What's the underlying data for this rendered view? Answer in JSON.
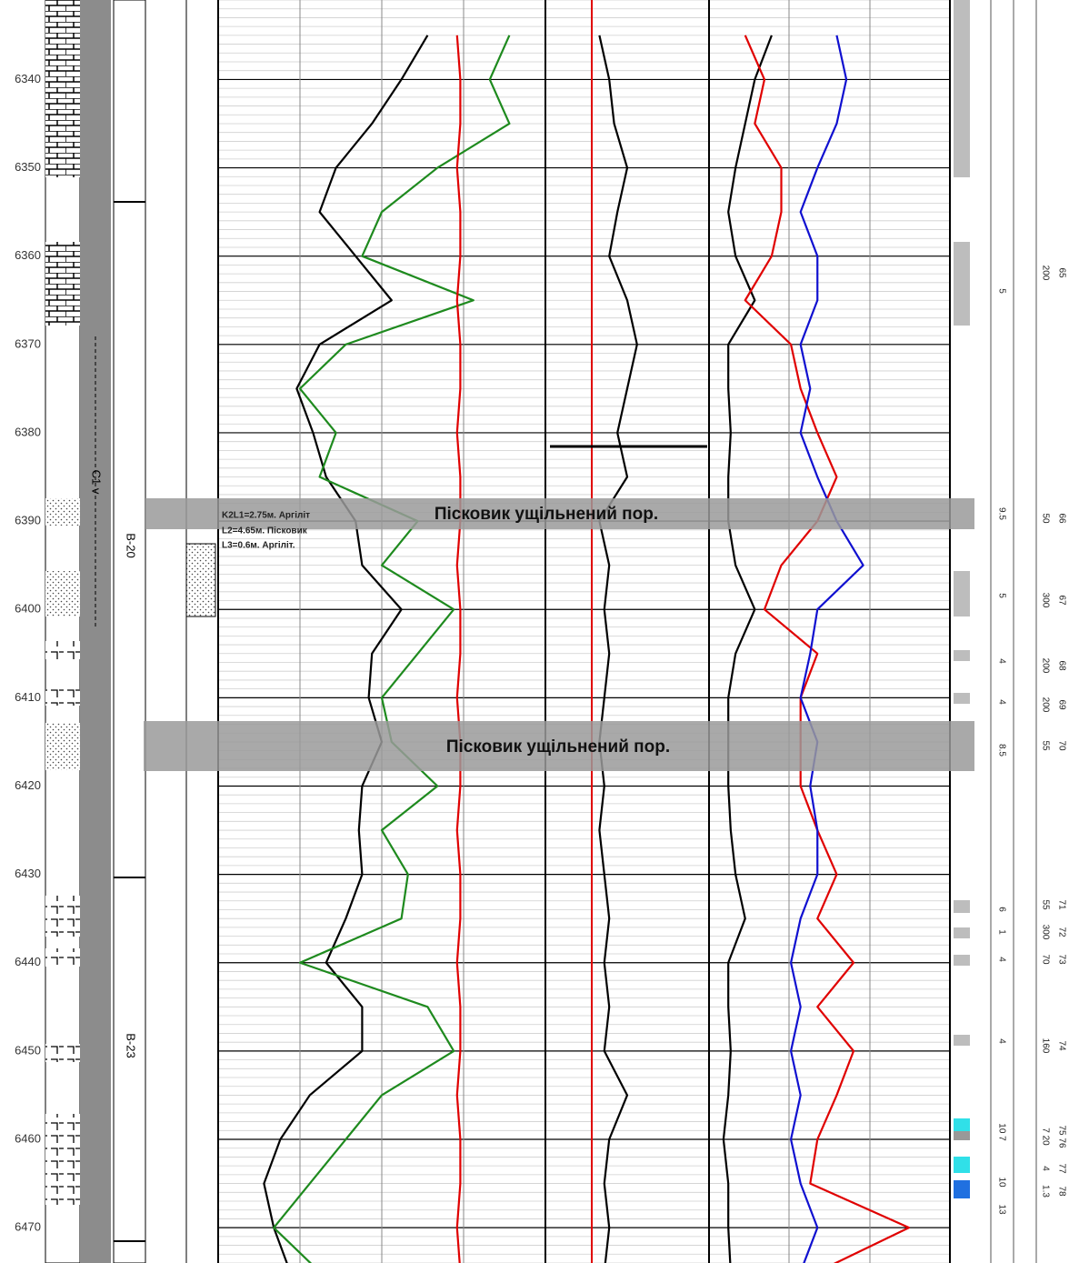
{
  "chart_data": {
    "type": "well-log",
    "x": [
      6335,
      6340,
      6345,
      6350,
      6355,
      6360,
      6365,
      6370,
      6375,
      6380,
      6385,
      6390,
      6395,
      6400,
      6405,
      6410,
      6415,
      6420,
      6425,
      6430,
      6435,
      6440,
      6445,
      6450,
      6455,
      6460,
      6465,
      6470,
      6475
    ],
    "depth_lim": [
      6331,
      6474
    ],
    "depth_ticks": [
      6340,
      6350,
      6360,
      6370,
      6380,
      6390,
      6400,
      6410,
      6420,
      6430,
      6440,
      6450,
      6460,
      6470
    ],
    "tracks": [
      {
        "xlim": [
          0,
          100
        ],
        "series": [
          {
            "color": "#000000",
            "values": [
              64,
              56,
              47,
              36,
              31,
              42,
              53,
              31,
              24,
              29,
              33,
              42,
              44,
              56,
              47,
              46,
              50,
              44,
              43,
              44,
              39,
              33,
              44,
              44,
              28,
              19,
              14,
              17,
              22
            ]
          },
          {
            "color": "#1e8a1e",
            "values": [
              89,
              83,
              89,
              67,
              50,
              44,
              78,
              39,
              25,
              36,
              31,
              61,
              50,
              72,
              61,
              50,
              53,
              67,
              50,
              58,
              56,
              25,
              64,
              72,
              50,
              39,
              28,
              17,
              31
            ]
          },
          {
            "color": "#e00000",
            "values": [
              73,
              74,
              74,
              73,
              74,
              74,
              73,
              74,
              74,
              73,
              74,
              74,
              73,
              74,
              74,
              73,
              74,
              74,
              73,
              74,
              74,
              73,
              74,
              74,
              73,
              74,
              74,
              73,
              74
            ]
          }
        ]
      },
      {
        "xlim": [
          0,
          100
        ],
        "series": [
          {
            "color": "#000000",
            "values": [
              33,
              39,
              42,
              50,
              44,
              39,
              50,
              56,
              50,
              44,
              50,
              33,
              39,
              36,
              39,
              36,
              33,
              36,
              33,
              36,
              39,
              36,
              39,
              36,
              50,
              39,
              36,
              39,
              36
            ]
          }
        ]
      },
      {
        "xlim": [
          0,
          100
        ],
        "series": [
          {
            "color": "#000000",
            "values": [
              26,
              19,
              15,
              11,
              8,
              11,
              19,
              8,
              8,
              9,
              8,
              8,
              11,
              19,
              11,
              8,
              8,
              8,
              9,
              11,
              15,
              8,
              8,
              9,
              8,
              6,
              8,
              8,
              9
            ]
          },
          {
            "color": "#e00000",
            "values": [
              15,
              23,
              19,
              30,
              30,
              26,
              15,
              34,
              38,
              45,
              53,
              45,
              30,
              23,
              45,
              38,
              38,
              38,
              45,
              53,
              45,
              60,
              45,
              60,
              53,
              45,
              42,
              83,
              45
            ]
          },
          {
            "color": "#1010d0",
            "values": [
              53,
              57,
              53,
              45,
              38,
              45,
              45,
              38,
              42,
              38,
              45,
              53,
              64,
              45,
              42,
              38,
              45,
              42,
              45,
              45,
              38,
              34,
              38,
              34,
              38,
              34,
              38,
              45,
              38
            ]
          }
        ]
      }
    ],
    "annotations": [
      "Пісковик ущільнений пор.",
      "Пісковик ущільнений пор."
    ],
    "layer_notes": [
      "K2L1=2.75м. Аргіліт",
      "L2=4.65м. Пісковик",
      "L3=0.6м. Аргіліт."
    ],
    "stratigraphy": "C1 v",
    "horizons": [
      "B-20",
      "B-23"
    ],
    "column_a": [
      "5",
      "9.5",
      "5",
      "4",
      "4",
      "8.5",
      "6",
      "1",
      "4",
      "4",
      "10 7",
      "10",
      "13"
    ],
    "column_b": [
      [
        "65",
        "200"
      ],
      [
        "66",
        "50"
      ],
      [
        "67",
        "300"
      ],
      [
        "68",
        "200"
      ],
      [
        "69",
        "200"
      ],
      [
        "70",
        "55"
      ],
      [
        "71",
        "55"
      ],
      [
        "72",
        "300"
      ],
      [
        "73",
        "70"
      ],
      [
        "74",
        "160"
      ],
      [
        "75 76",
        "7 20"
      ],
      [
        "77",
        "4"
      ],
      [
        "78",
        "1.3"
      ]
    ]
  }
}
